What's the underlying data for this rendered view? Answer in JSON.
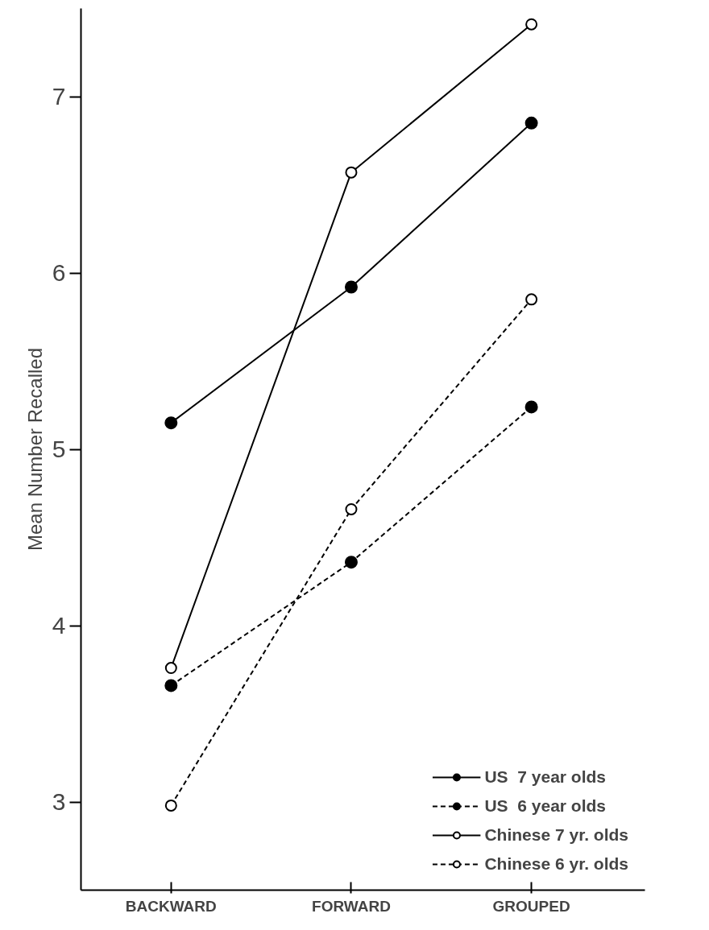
{
  "chart_data": {
    "type": "line",
    "ylabel": "Mean Number Recalled",
    "categories": [
      "BACKWARD",
      "FORWARD",
      "GROUPED"
    ],
    "ylim": [
      2.5,
      7.5
    ],
    "yticks": [
      3,
      4,
      5,
      6,
      7
    ],
    "grid": false,
    "legend": "bottom right",
    "series": [
      {
        "name": "US  7 year olds",
        "color": "#000000",
        "values": [
          5.15,
          5.92,
          6.85
        ],
        "line_style": "solid",
        "marker": "circle"
      },
      {
        "name": "US  6 year olds",
        "color": "#000000",
        "values": [
          3.66,
          4.36,
          5.24
        ],
        "line_style": "dashed",
        "marker": "circle"
      },
      {
        "name": "Chinese 7 yr. olds",
        "color": "#000000",
        "values": [
          3.76,
          6.57,
          7.41
        ],
        "line_style": "solid",
        "marker": "circle_open"
      },
      {
        "name": "Chinese 6 yr. olds",
        "color": "#000000",
        "values": [
          2.98,
          4.66,
          5.85
        ],
        "line_style": "dashed",
        "marker": "circle_open"
      }
    ]
  }
}
